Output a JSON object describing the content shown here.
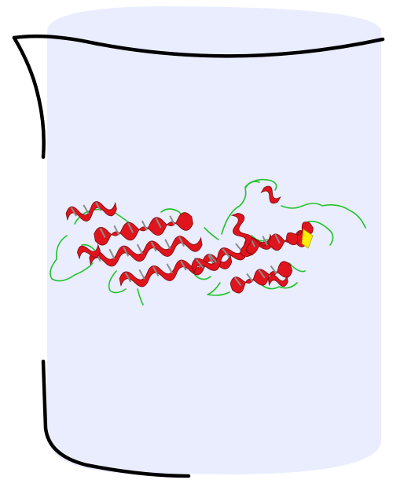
{
  "illustration": {
    "container_shape": "beaker",
    "container_fill": "#e9edfe",
    "outline_color": "#000000",
    "contents": "protein-ribbon-structure",
    "structure_colors": {
      "helix": "#e0141c",
      "helix_shade": "#8c8c8c",
      "loop": "#22c32a",
      "strand": "#ffee00"
    }
  }
}
